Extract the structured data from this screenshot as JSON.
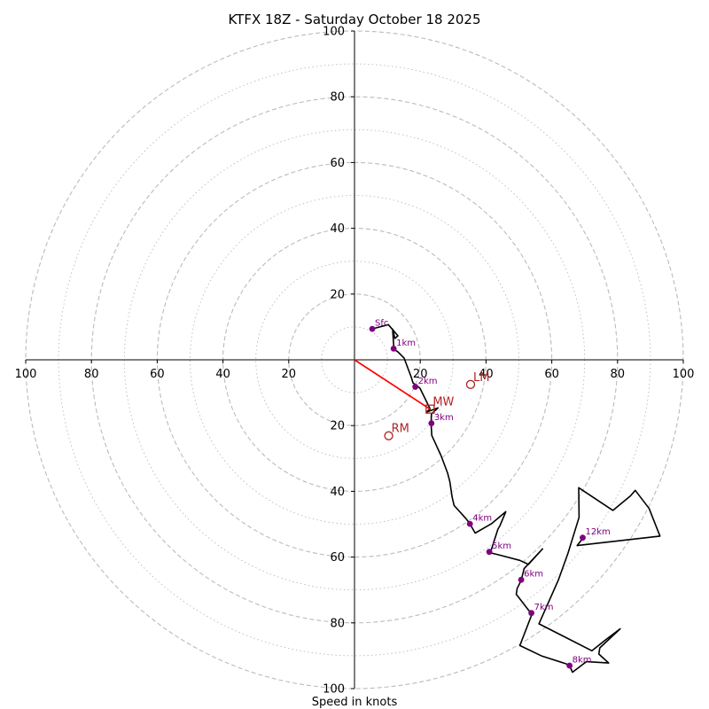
{
  "chart_data": {
    "type": "hodograph",
    "title": "KTFX 18Z - Saturday October 18 2025",
    "xlabel": "Speed in knots",
    "xlim": [
      -100,
      100
    ],
    "ylim": [
      -100,
      100
    ],
    "ring_major": [
      20,
      40,
      60,
      80,
      100
    ],
    "ring_minor": [
      10,
      30,
      50,
      70,
      90
    ],
    "x_ticks": [
      "100",
      "80",
      "60",
      "40",
      "20",
      "20",
      "40",
      "60",
      "80",
      "100"
    ],
    "y_ticks": [
      "100",
      "80",
      "60",
      "40",
      "20",
      "20",
      "40",
      "60",
      "80",
      "100"
    ],
    "x_tick_values": [
      -100,
      -80,
      -60,
      -40,
      -20,
      20,
      40,
      60,
      80,
      100
    ],
    "y_tick_values": [
      100,
      80,
      60,
      40,
      20,
      -20,
      -40,
      -60,
      -80,
      -100
    ],
    "trace": [
      [
        5.4,
        9.4
      ],
      [
        10.3,
        10.7
      ],
      [
        13.2,
        7.3
      ],
      [
        12.3,
        6.5
      ],
      [
        11.6,
        9.3
      ],
      [
        12.0,
        3.2
      ],
      [
        13.2,
        2.4
      ],
      [
        15.1,
        0.5
      ],
      [
        17.3,
        -5.4
      ],
      [
        17.8,
        -7.0
      ],
      [
        19.9,
        -8.6
      ],
      [
        23.0,
        -14.9
      ],
      [
        21.9,
        -15.9
      ],
      [
        25.4,
        -14.6
      ],
      [
        23.4,
        -16.5
      ],
      [
        23.3,
        -19.3
      ],
      [
        23.5,
        -23.0
      ],
      [
        26.3,
        -29.1
      ],
      [
        28.3,
        -34.4
      ],
      [
        29.0,
        -37.1
      ],
      [
        29.7,
        -41.8
      ],
      [
        30.3,
        -44.3
      ],
      [
        33.9,
        -48.3
      ],
      [
        35.1,
        -49.9
      ],
      [
        36.7,
        -52.7
      ],
      [
        39.5,
        -51.1
      ],
      [
        41.6,
        -49.9
      ],
      [
        46.0,
        -46.2
      ],
      [
        44.2,
        -50.5
      ],
      [
        43.6,
        -51.5
      ],
      [
        41.4,
        -58.4
      ],
      [
        40.9,
        -58.6
      ],
      [
        43.8,
        -59.3
      ],
      [
        50.3,
        -61.0
      ],
      [
        52.9,
        -62.2
      ],
      [
        57.2,
        -57.5
      ],
      [
        51.6,
        -63.5
      ],
      [
        50.7,
        -67.1
      ],
      [
        49.5,
        -69.5
      ],
      [
        49.2,
        -71.3
      ],
      [
        53.0,
        -76.2
      ],
      [
        54.0,
        -77.3
      ],
      [
        50.3,
        -86.9
      ],
      [
        57.0,
        -90.1
      ],
      [
        64.2,
        -92.4
      ],
      [
        65.4,
        -93.0
      ],
      [
        66.3,
        -95.0
      ],
      [
        70.5,
        -91.8
      ],
      [
        77.3,
        -92.2
      ],
      [
        74.3,
        -89.5
      ],
      [
        74.6,
        -87.6
      ],
      [
        80.8,
        -81.8
      ],
      [
        76.3,
        -85.2
      ],
      [
        72.2,
        -88.5
      ],
      [
        56.1,
        -80.3
      ],
      [
        62.0,
        -67.0
      ],
      [
        64.9,
        -58.9
      ],
      [
        68.3,
        -47.9
      ],
      [
        68.2,
        -38.9
      ],
      [
        78.6,
        -45.8
      ],
      [
        83.9,
        -41.4
      ],
      [
        85.4,
        -39.7
      ],
      [
        89.6,
        -45.2
      ],
      [
        92.9,
        -53.6
      ],
      [
        67.7,
        -56.5
      ],
      [
        69.5,
        -54.2
      ]
    ],
    "height_markers": [
      {
        "label": "Sfc",
        "u": 5.4,
        "v": 9.4
      },
      {
        "label": "1km",
        "u": 11.9,
        "v": 3.4
      },
      {
        "label": "2km",
        "u": 18.5,
        "v": -8.2
      },
      {
        "label": "3km",
        "u": 23.4,
        "v": -19.3
      },
      {
        "label": "4km",
        "u": 35.1,
        "v": -49.9
      },
      {
        "label": "5km",
        "u": 41.0,
        "v": -58.4
      },
      {
        "label": "6km",
        "u": 50.7,
        "v": -66.9
      },
      {
        "label": "7km",
        "u": 53.8,
        "v": -77.0
      },
      {
        "label": "8km",
        "u": 65.4,
        "v": -93.0
      },
      {
        "label": "12km",
        "u": 69.4,
        "v": -54.1
      }
    ],
    "motion_markers": [
      {
        "label": "LM",
        "u": 35.3,
        "v": -7.5,
        "shape": "circle"
      },
      {
        "label": "MW",
        "u": 23.0,
        "v": -15.0,
        "shape": "square"
      },
      {
        "label": "RM",
        "u": 10.4,
        "v": -23.1,
        "shape": "circle"
      }
    ],
    "shear_vector": {
      "from": [
        0,
        0
      ],
      "to": [
        23.0,
        -15.0
      ]
    },
    "colors": {
      "trace": "#000000",
      "height_marker": "#800080",
      "motion": "#b22222",
      "shear_vector": "#ff0000",
      "ring": "#bbbbbb",
      "axis": "#000000"
    }
  }
}
